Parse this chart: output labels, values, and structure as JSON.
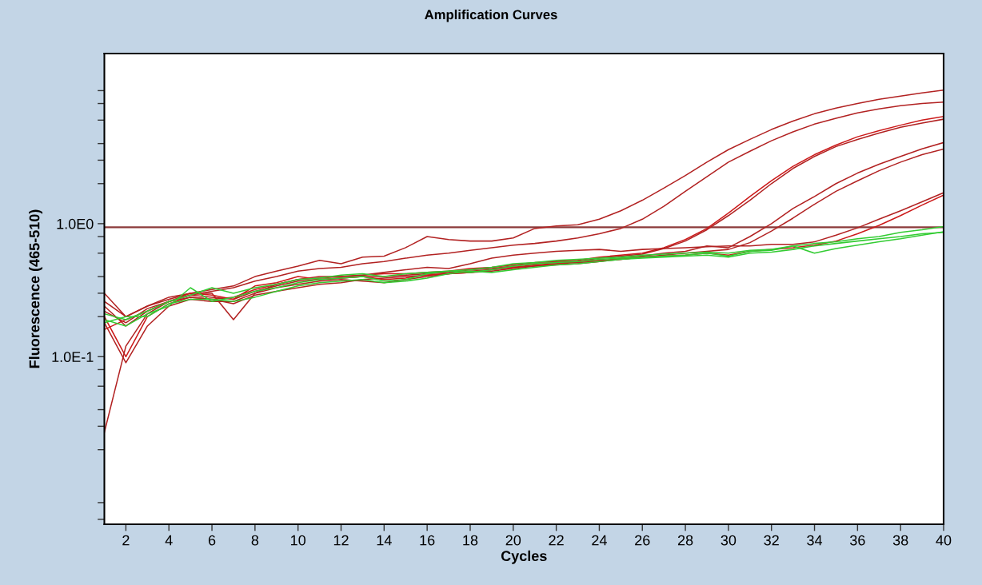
{
  "chart_data": {
    "type": "line",
    "title": "Amplification Curves",
    "xlabel": "Cycles",
    "ylabel": "Fluorescence (465-510)",
    "log": "y",
    "grid": false,
    "legend": false,
    "marker": "none",
    "line_style": "solid",
    "x": [
      1,
      2,
      3,
      4,
      5,
      6,
      7,
      8,
      9,
      10,
      11,
      12,
      13,
      14,
      15,
      16,
      17,
      18,
      19,
      20,
      21,
      22,
      23,
      24,
      25,
      26,
      27,
      28,
      29,
      30,
      31,
      32,
      33,
      34,
      35,
      36,
      37,
      38,
      39,
      40
    ],
    "xlim": [
      1,
      40
    ],
    "xticks": [
      2,
      4,
      6,
      8,
      10,
      12,
      14,
      16,
      18,
      20,
      22,
      24,
      26,
      28,
      30,
      32,
      34,
      36,
      38,
      40
    ],
    "ylim": [
      0.0055,
      19
    ],
    "yticks": [
      {
        "value": 0.006,
        "label": null
      },
      {
        "value": 0.008,
        "label": null
      },
      {
        "value": 0.02,
        "label": null
      },
      {
        "value": 0.03,
        "label": null
      },
      {
        "value": 0.04,
        "label": null
      },
      {
        "value": 0.06,
        "label": null
      },
      {
        "value": 0.08,
        "label": null
      },
      {
        "value": 0.1,
        "label": "1.0E-1"
      },
      {
        "value": 0.2,
        "label": null
      },
      {
        "value": 0.3,
        "label": null
      },
      {
        "value": 0.4,
        "label": null
      },
      {
        "value": 0.6,
        "label": null
      },
      {
        "value": 0.8,
        "label": null
      },
      {
        "value": 1,
        "label": "1.0E0"
      },
      {
        "value": 2,
        "label": null
      },
      {
        "value": 3,
        "label": null
      },
      {
        "value": 4,
        "label": null
      },
      {
        "value": 6,
        "label": null
      },
      {
        "value": 8,
        "label": null
      },
      {
        "value": 10,
        "label": null
      }
    ],
    "ref_lines": [
      {
        "axis": "y",
        "value": 0.94,
        "label": null,
        "color": "#8b3a3a"
      }
    ],
    "series": [
      {
        "color": "#b22222",
        "values": [
          0.26,
          0.2,
          0.24,
          0.27,
          0.3,
          0.32,
          0.34,
          0.4,
          0.44,
          0.48,
          0.53,
          0.5,
          0.56,
          0.57,
          0.66,
          0.8,
          0.76,
          0.74,
          0.74,
          0.78,
          0.92,
          0.96,
          0.98,
          1.08,
          1.25,
          1.5,
          1.85,
          2.3,
          2.9,
          3.6,
          4.3,
          5.1,
          5.9,
          6.7,
          7.4,
          8.0,
          8.6,
          9.1,
          9.6,
          10.1
        ]
      },
      {
        "color": "#b22222",
        "values": [
          0.22,
          0.18,
          0.23,
          0.26,
          0.29,
          0.31,
          0.33,
          0.37,
          0.4,
          0.44,
          0.46,
          0.47,
          0.5,
          0.52,
          0.55,
          0.58,
          0.6,
          0.63,
          0.66,
          0.69,
          0.71,
          0.74,
          0.78,
          0.84,
          0.92,
          1.08,
          1.35,
          1.75,
          2.25,
          2.9,
          3.5,
          4.2,
          4.9,
          5.6,
          6.2,
          6.8,
          7.3,
          7.7,
          8.0,
          8.2
        ]
      },
      {
        "color": "#cc1a1a",
        "values": [
          0.2,
          0.1,
          0.2,
          0.25,
          0.28,
          0.27,
          0.28,
          0.32,
          0.35,
          0.38,
          0.39,
          0.4,
          0.41,
          0.42,
          0.42,
          0.43,
          0.44,
          0.46,
          0.47,
          0.49,
          0.51,
          0.52,
          0.53,
          0.56,
          0.58,
          0.6,
          0.66,
          0.76,
          0.92,
          1.2,
          1.6,
          2.1,
          2.7,
          3.3,
          3.9,
          4.5,
          5.0,
          5.5,
          6.0,
          6.4
        ]
      },
      {
        "color": "#b22222",
        "values": [
          0.24,
          0.17,
          0.22,
          0.26,
          0.29,
          0.28,
          0.27,
          0.31,
          0.34,
          0.37,
          0.38,
          0.39,
          0.4,
          0.4,
          0.41,
          0.42,
          0.43,
          0.45,
          0.46,
          0.48,
          0.5,
          0.51,
          0.52,
          0.55,
          0.57,
          0.59,
          0.65,
          0.74,
          0.9,
          1.15,
          1.5,
          2.0,
          2.6,
          3.2,
          3.8,
          4.3,
          4.8,
          5.3,
          5.7,
          6.1
        ]
      },
      {
        "color": "#b22222",
        "values": [
          0.18,
          0.09,
          0.17,
          0.24,
          0.27,
          0.26,
          0.26,
          0.3,
          0.33,
          0.35,
          0.37,
          0.38,
          0.37,
          0.36,
          0.38,
          0.4,
          0.42,
          0.43,
          0.44,
          0.46,
          0.48,
          0.5,
          0.51,
          0.52,
          0.55,
          0.57,
          0.6,
          0.62,
          0.68,
          0.66,
          0.8,
          1.0,
          1.3,
          1.6,
          2.0,
          2.4,
          2.8,
          3.2,
          3.65,
          4.07
        ]
      },
      {
        "color": "#b22222",
        "values": [
          0.027,
          0.12,
          0.21,
          0.26,
          0.28,
          0.27,
          0.25,
          0.29,
          0.31,
          0.33,
          0.35,
          0.36,
          0.38,
          0.39,
          0.4,
          0.41,
          0.42,
          0.44,
          0.45,
          0.47,
          0.48,
          0.49,
          0.5,
          0.52,
          0.54,
          0.56,
          0.58,
          0.6,
          0.62,
          0.64,
          0.72,
          0.88,
          1.1,
          1.4,
          1.75,
          2.1,
          2.5,
          2.9,
          3.3,
          3.64
        ]
      },
      {
        "color": "#b22222",
        "values": [
          0.3,
          0.2,
          0.24,
          0.28,
          0.3,
          0.3,
          0.19,
          0.3,
          0.35,
          0.38,
          0.4,
          0.4,
          0.41,
          0.43,
          0.45,
          0.47,
          0.46,
          0.5,
          0.55,
          0.58,
          0.6,
          0.62,
          0.63,
          0.64,
          0.62,
          0.64,
          0.65,
          0.66,
          0.67,
          0.68,
          0.68,
          0.7,
          0.7,
          0.73,
          0.82,
          0.93,
          1.08,
          1.25,
          1.46,
          1.71
        ]
      },
      {
        "color": "#cc1a1a",
        "values": [
          0.16,
          0.19,
          0.22,
          0.26,
          0.3,
          0.29,
          0.27,
          0.34,
          0.36,
          0.4,
          0.38,
          0.39,
          0.4,
          0.38,
          0.39,
          0.41,
          0.42,
          0.43,
          0.45,
          0.47,
          0.49,
          0.5,
          0.52,
          0.53,
          0.54,
          0.56,
          0.57,
          0.58,
          0.6,
          0.58,
          0.62,
          0.64,
          0.66,
          0.69,
          0.74,
          0.84,
          0.97,
          1.15,
          1.38,
          1.64
        ]
      },
      {
        "color": "#33cc33",
        "values": [
          0.19,
          0.17,
          0.21,
          0.24,
          0.33,
          0.26,
          0.28,
          0.31,
          0.33,
          0.36,
          0.38,
          0.39,
          0.4,
          0.37,
          0.38,
          0.42,
          0.44,
          0.43,
          0.45,
          0.48,
          0.5,
          0.51,
          0.52,
          0.54,
          0.55,
          0.56,
          0.57,
          0.58,
          0.6,
          0.57,
          0.62,
          0.63,
          0.68,
          0.6,
          0.65,
          0.69,
          0.73,
          0.77,
          0.82,
          0.87
        ]
      },
      {
        "color": "#33cc33",
        "values": [
          0.21,
          0.19,
          0.22,
          0.26,
          0.29,
          0.33,
          0.3,
          0.33,
          0.35,
          0.38,
          0.39,
          0.41,
          0.42,
          0.4,
          0.42,
          0.43,
          0.44,
          0.45,
          0.47,
          0.5,
          0.51,
          0.53,
          0.54,
          0.55,
          0.56,
          0.58,
          0.59,
          0.6,
          0.61,
          0.6,
          0.63,
          0.64,
          0.68,
          0.71,
          0.73,
          0.77,
          0.8,
          0.86,
          0.9,
          0.95
        ]
      },
      {
        "color": "#33cc33",
        "values": [
          0.18,
          0.2,
          0.2,
          0.25,
          0.27,
          0.27,
          0.26,
          0.28,
          0.31,
          0.34,
          0.36,
          0.37,
          0.38,
          0.36,
          0.37,
          0.39,
          0.42,
          0.44,
          0.43,
          0.45,
          0.47,
          0.49,
          0.5,
          0.52,
          0.54,
          0.55,
          0.56,
          0.57,
          0.58,
          0.56,
          0.6,
          0.61,
          0.64,
          0.68,
          0.71,
          0.74,
          0.77,
          0.8,
          0.84,
          0.86
        ]
      }
    ]
  }
}
